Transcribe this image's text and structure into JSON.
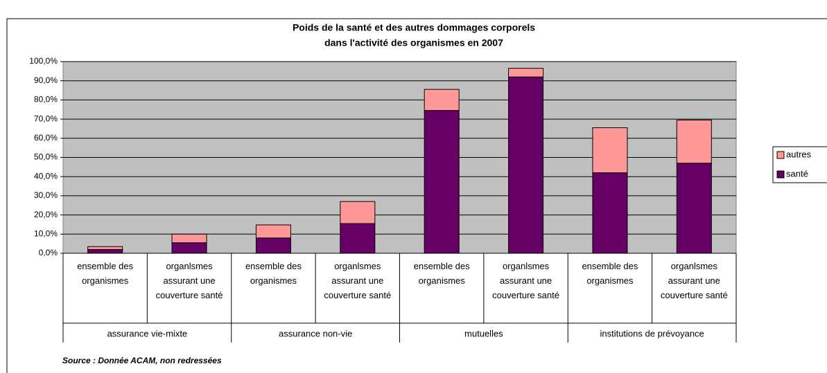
{
  "chart_data": {
    "type": "stacked_bar",
    "title": "Poids de la santé et des autres dommages corporels",
    "subtitle": "dans l'activité des organismes en 2007",
    "categories": [
      "ensemble des organismes",
      "organlsmes assurant une couverture santé",
      "ensemble des organismes",
      "organlsmes assurant une couverture santé",
      "ensemble des organismes",
      "organlsmes assurant une couverture santé",
      "ensemble des organismes",
      "organlsmes assurant une couverture santé"
    ],
    "groups": [
      "assurance vie-mixte",
      "assurance non-vie",
      "mutuelles",
      "institutions de prévoyance"
    ],
    "series": [
      {
        "name": "santé",
        "color": "#660066",
        "values": [
          2,
          5.5,
          8,
          15.5,
          74.5,
          92,
          42,
          47
        ]
      },
      {
        "name": "autres",
        "color": "#ff9999",
        "values": [
          1.5,
          4.5,
          6.8,
          11.5,
          11,
          4.5,
          23.5,
          22.5
        ]
      }
    ],
    "ylim": [
      0,
      100
    ],
    "yticks": [
      {
        "value": 0,
        "label": "0,0%"
      },
      {
        "value": 10,
        "label": "10,0%"
      },
      {
        "value": 20,
        "label": "20,0%"
      },
      {
        "value": 30,
        "label": "30,0%"
      },
      {
        "value": 40,
        "label": "40,0%"
      },
      {
        "value": 50,
        "label": "50,0%"
      },
      {
        "value": 60,
        "label": "60,0%"
      },
      {
        "value": 70,
        "label": "70,0%"
      },
      {
        "value": 80,
        "label": "80,0%"
      },
      {
        "value": 90,
        "label": "90,0%"
      },
      {
        "value": 100,
        "label": "100,0%"
      }
    ],
    "grid": true,
    "legend": "right",
    "source": "Source : Donnée ACAM, non redressées"
  }
}
